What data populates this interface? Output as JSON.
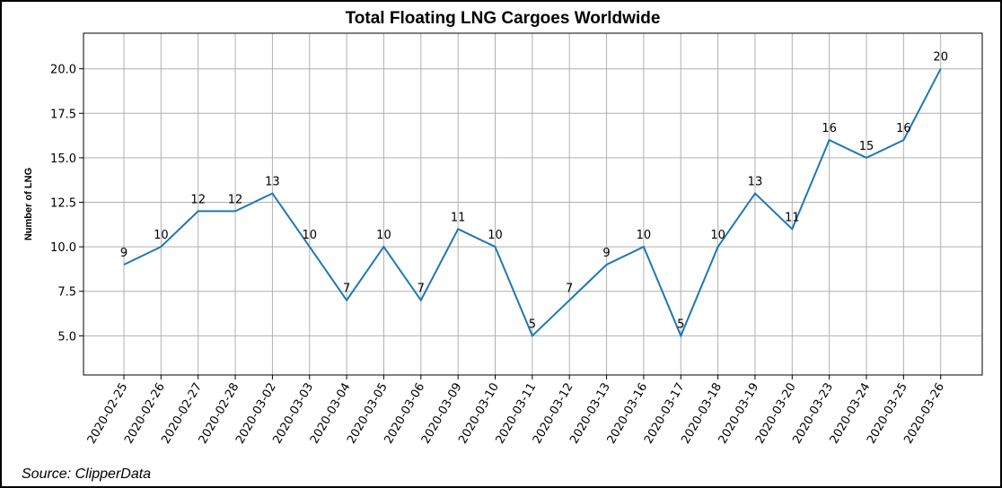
{
  "chart_data": {
    "type": "line",
    "title": "Total Floating LNG Cargoes Worldwide",
    "xlabel": "",
    "ylabel": "Number of LNG",
    "ylim": [
      2.8,
      22.0
    ],
    "yticks": [
      5.0,
      7.5,
      10.0,
      12.5,
      15.0,
      17.5,
      20.0
    ],
    "grid": true,
    "color": "#1f77b4",
    "categories": [
      "2020-02-25",
      "2020-02-26",
      "2020-02-27",
      "2020-02-28",
      "2020-03-02",
      "2020-03-03",
      "2020-03-04",
      "2020-03-05",
      "2020-03-06",
      "2020-03-09",
      "2020-03-10",
      "2020-03-11",
      "2020-03-12",
      "2020-03-13",
      "2020-03-16",
      "2020-03-17",
      "2020-03-18",
      "2020-03-19",
      "2020-03-20",
      "2020-03-23",
      "2020-03-24",
      "2020-03-25",
      "2020-03-26"
    ],
    "values": [
      9,
      10,
      12,
      12,
      13,
      10,
      7,
      10,
      7,
      11,
      10,
      5,
      7,
      9,
      10,
      5,
      10,
      13,
      11,
      16,
      15,
      16,
      20
    ],
    "source": "Source: ClipperData"
  }
}
